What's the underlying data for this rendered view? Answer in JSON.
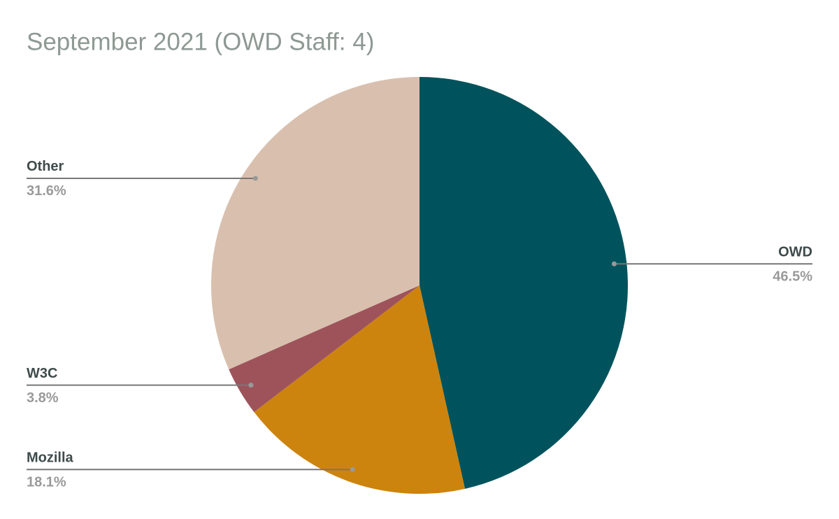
{
  "chart_data": {
    "type": "pie",
    "title": "September 2021 (OWD Staff: 4)",
    "categories": [
      "OWD",
      "Mozilla",
      "W3C",
      "Other"
    ],
    "values": [
      46.5,
      18.1,
      3.8,
      31.6
    ],
    "value_labels": [
      "46.5%",
      "18.1%",
      "3.8%",
      "31.6%"
    ],
    "colors": [
      "#00535c",
      "#cc840e",
      "#9e535b",
      "#d9c0ae"
    ]
  }
}
